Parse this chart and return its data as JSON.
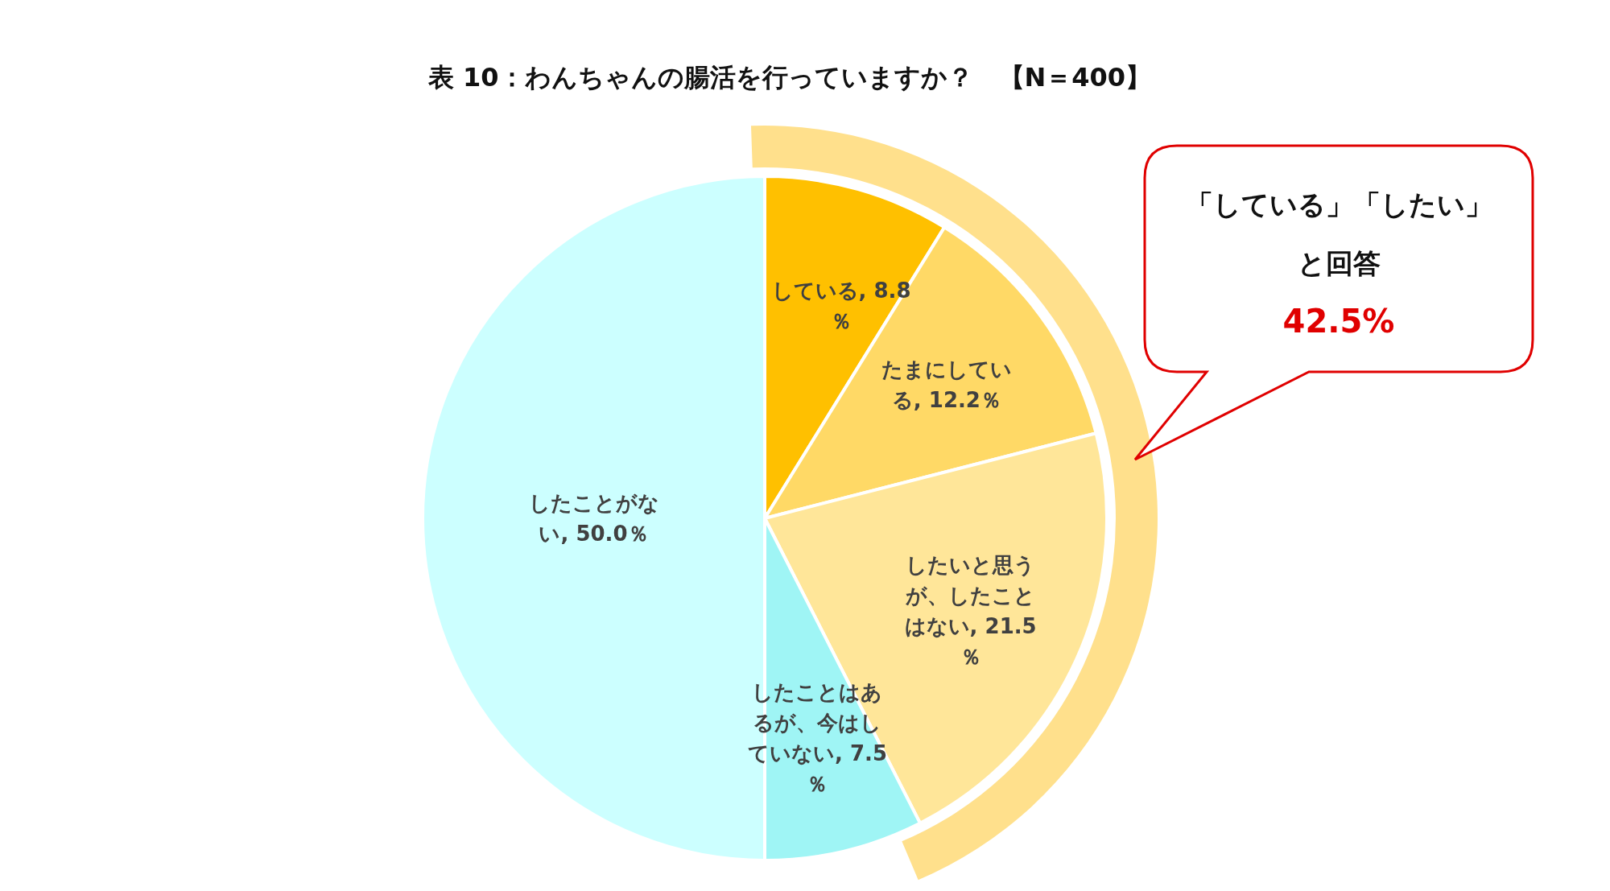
{
  "chart_data": {
    "type": "pie",
    "title": "表 10：わんちゃんの腸活を行っていますか？　【N＝400】",
    "categories": [
      "している",
      "たまにしている",
      "したいと思うが、したことはない",
      "したことはあるが、今はしていない",
      "したことがない"
    ],
    "values": [
      8.8,
      12.2,
      21.5,
      7.5,
      50.0
    ],
    "value_labels": [
      "8.8％",
      "12.2％",
      "21.5％",
      "7.5％",
      "50.0％"
    ],
    "colors": [
      "#ffc000",
      "#ffd966",
      "#ffe699",
      "#9ff5f5",
      "#ccffff"
    ],
    "legend": false,
    "annotations": [
      "「している」「したい」",
      "と回答",
      "42.5%"
    ]
  }
}
